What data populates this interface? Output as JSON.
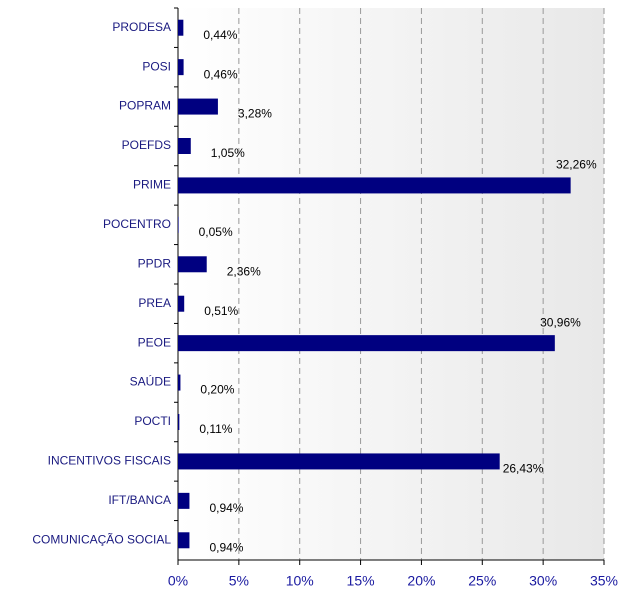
{
  "chart_data": {
    "type": "bar",
    "orientation": "horizontal",
    "categories": [
      "PRODESA",
      "POSI",
      "POPRAM",
      "POEFDS",
      "PRIME",
      "POCENTRO",
      "PPDR",
      "PREA",
      "PEOE",
      "SAÚDE",
      "POCTI",
      "INCENTIVOS FISCAIS",
      "IFT/BANCA",
      "COMUNICAÇÃO SOCIAL"
    ],
    "values": [
      0.44,
      0.46,
      3.28,
      1.05,
      32.26,
      0.05,
      2.36,
      0.51,
      30.96,
      0.2,
      0.11,
      26.43,
      0.94,
      0.94
    ],
    "value_labels": [
      "0,44%",
      "0,46%",
      "3,28%",
      "1,05%",
      "32,26%",
      "0,05%",
      "2,36%",
      "0,51%",
      "30,96%",
      "0,20%",
      "0,11%",
      "26,43%",
      "0,94%",
      "0,94%"
    ],
    "color": "#000080",
    "xlim": [
      0,
      35
    ],
    "xticks": [
      {
        "value": 0,
        "label": "0%"
      },
      {
        "value": 5,
        "label": "5%"
      },
      {
        "value": 10,
        "label": "10%"
      },
      {
        "value": 15,
        "label": "15%"
      },
      {
        "value": 20,
        "label": "20%"
      },
      {
        "value": 25,
        "label": "25%"
      },
      {
        "value": 30,
        "label": "30%"
      },
      {
        "value": 35,
        "label": "35%"
      }
    ],
    "grid": true
  }
}
